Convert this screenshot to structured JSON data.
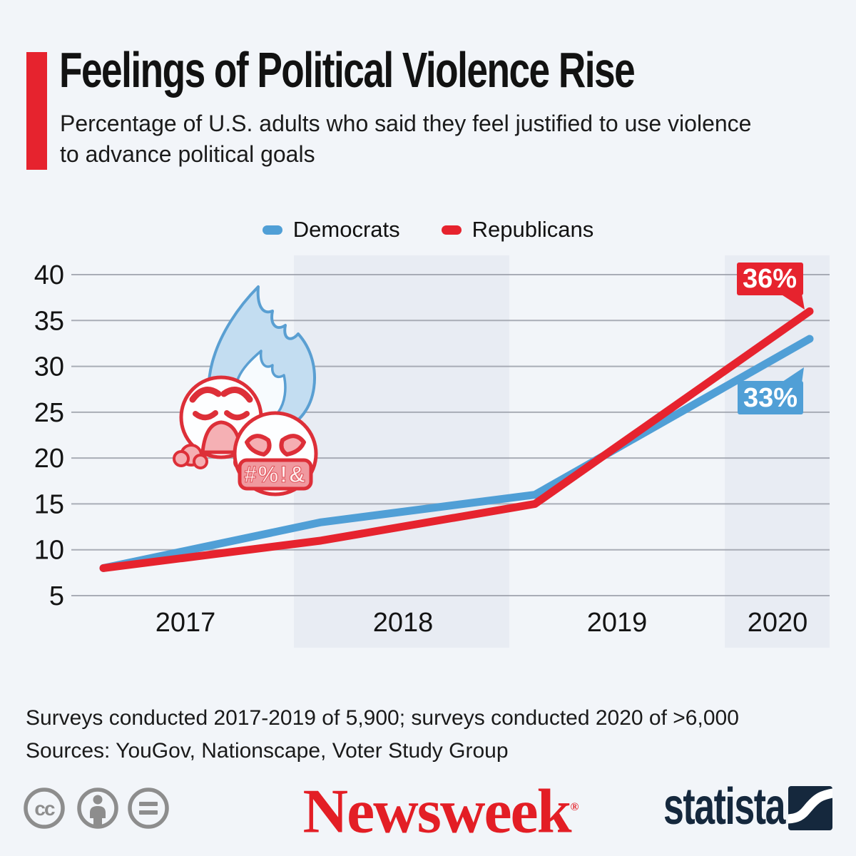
{
  "header": {
    "title": "Feelings of Political Violence Rise",
    "subtitle": "Percentage of U.S. adults who said they feel justified to use violence\nto advance political goals"
  },
  "legend": {
    "items": [
      {
        "label": "Democrats",
        "color": "#509fd6"
      },
      {
        "label": "Republicans",
        "color": "#e6232e"
      }
    ]
  },
  "chart_data": {
    "type": "line",
    "title": "Feelings of Political Violence Rise",
    "categories": [
      "2017",
      "2018",
      "2019",
      "2020"
    ],
    "series": [
      {
        "name": "Democrats",
        "color": "#509fd6",
        "values": [
          8,
          13,
          16,
          33
        ]
      },
      {
        "name": "Republicans",
        "color": "#e6232e",
        "values": [
          8,
          11,
          15,
          36
        ]
      }
    ],
    "end_labels": [
      {
        "series": "Republicans",
        "text": "36%"
      },
      {
        "series": "Democrats",
        "text": "33%"
      }
    ],
    "xlabel": "",
    "ylabel": "",
    "ylim": [
      5,
      40
    ],
    "yticks": [
      5,
      10,
      15,
      20,
      25,
      30,
      35,
      40
    ],
    "grid": "horizontal",
    "legend_position": "top"
  },
  "illustration": {
    "grawlix": "#%!&"
  },
  "footnotes": {
    "line1": "Surveys conducted 2017-2019 of 5,900; surveys conducted 2020 of >6,000",
    "line2": "Sources: YouGov, Nationscape, Voter Study Group"
  },
  "branding": {
    "newsweek": "Newsweek",
    "newsweek_mark": "®",
    "statista": "statista"
  },
  "license_icons": [
    "cc",
    "attribution",
    "no-derivatives"
  ],
  "colors": {
    "background": "#f2f5f9",
    "band": "#e8ecf3",
    "grid": "#979ca6",
    "democrat": "#509fd6",
    "republican": "#e6232e",
    "accent_red": "#e6232e",
    "newsweek_red": "#e31e25",
    "statista_navy": "#15283d",
    "text": "#141414"
  }
}
